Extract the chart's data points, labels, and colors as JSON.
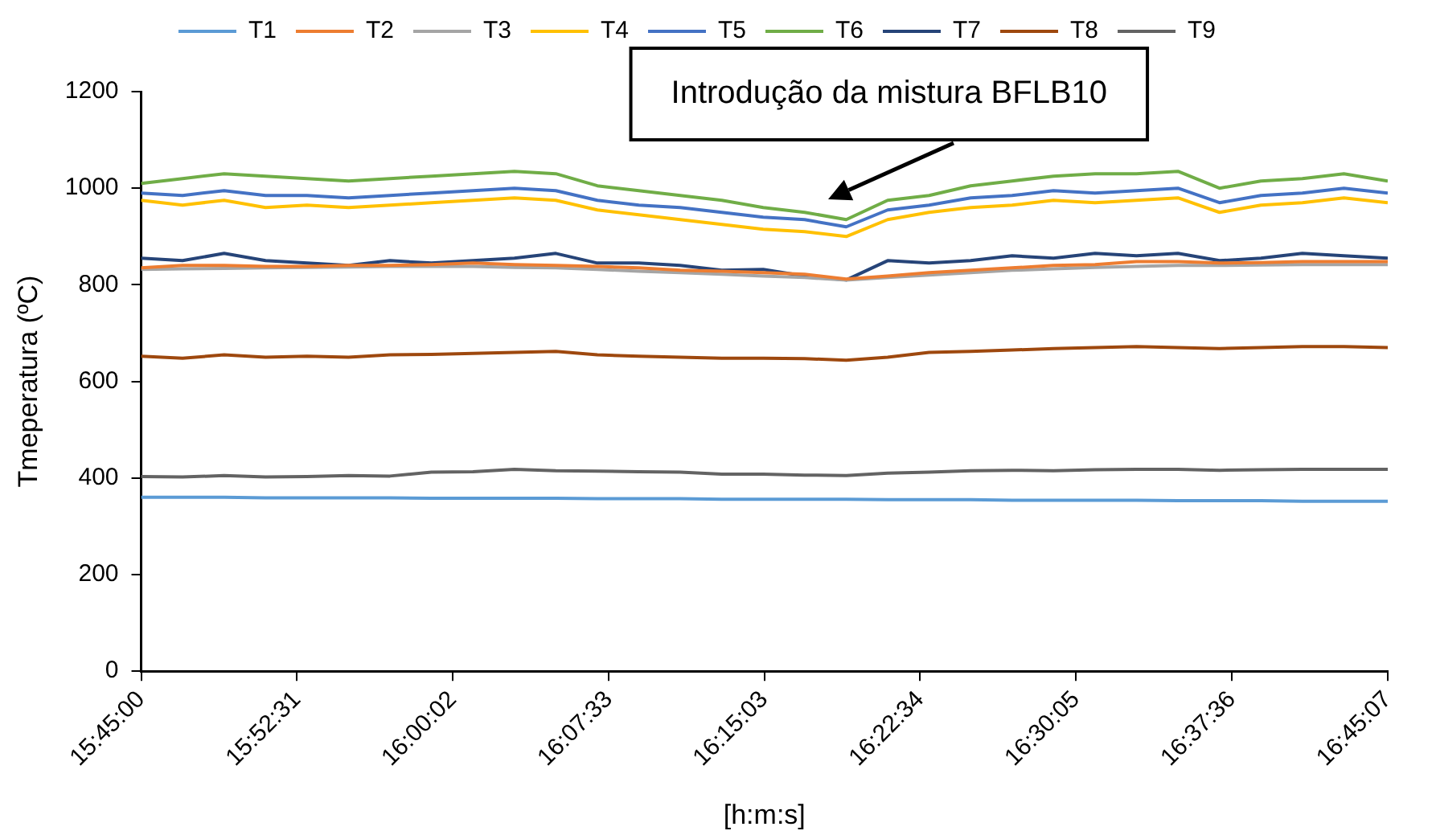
{
  "chart_data": {
    "type": "line",
    "xlabel": "[h:m:s]",
    "ylabel": "Tmeperatura (ºC)",
    "grid": false,
    "legend": "top",
    "marker": "none",
    "line_style": "solid",
    "xlim": [
      15.75,
      16.751944
    ],
    "ylim": [
      0,
      1200
    ],
    "yticks": [
      0,
      200,
      400,
      600,
      800,
      1000,
      1200
    ],
    "xticks": [
      {
        "value": 15.75,
        "label": "15:45:00"
      },
      {
        "value": 15.875278,
        "label": "15:52:31"
      },
      {
        "value": 16.000556,
        "label": "16:00:02"
      },
      {
        "value": 16.125833,
        "label": "16:07:33"
      },
      {
        "value": 16.250833,
        "label": "16:15:03"
      },
      {
        "value": 16.376111,
        "label": "16:22:34"
      },
      {
        "value": 16.501389,
        "label": "16:30:05"
      },
      {
        "value": 16.626667,
        "label": "16:37:36"
      },
      {
        "value": 16.751944,
        "label": "16:45:07"
      }
    ],
    "x": [
      15.75,
      15.7833,
      15.8167,
      15.85,
      15.8833,
      15.9167,
      15.95,
      15.9833,
      16.0167,
      16.05,
      16.0833,
      16.1167,
      16.15,
      16.1833,
      16.2167,
      16.25,
      16.2833,
      16.3167,
      16.35,
      16.3833,
      16.4167,
      16.45,
      16.4833,
      16.5167,
      16.55,
      16.5833,
      16.6167,
      16.65,
      16.6833,
      16.7167,
      16.751944
    ],
    "series": [
      {
        "name": "T1",
        "color": "#5b9bd5",
        "values": [
          360,
          360,
          360,
          359,
          359,
          359,
          359,
          358,
          358,
          358,
          358,
          357,
          357,
          357,
          356,
          356,
          356,
          356,
          355,
          355,
          355,
          354,
          354,
          354,
          354,
          353,
          353,
          353,
          352,
          352,
          352
        ]
      },
      {
        "name": "T2",
        "color": "#ed7d31",
        "values": [
          835,
          840,
          840,
          838,
          838,
          840,
          840,
          842,
          845,
          842,
          840,
          838,
          835,
          830,
          828,
          825,
          822,
          812,
          818,
          825,
          830,
          835,
          840,
          842,
          848,
          848,
          845,
          846,
          848,
          848,
          848
        ]
      },
      {
        "name": "T3",
        "color": "#a5a5a5",
        "values": [
          832,
          833,
          834,
          835,
          836,
          837,
          838,
          838,
          838,
          836,
          835,
          832,
          828,
          825,
          822,
          818,
          815,
          810,
          815,
          820,
          825,
          830,
          833,
          836,
          838,
          840,
          840,
          841,
          842,
          842,
          842
        ]
      },
      {
        "name": "T4",
        "color": "#ffc000",
        "values": [
          975,
          965,
          975,
          960,
          965,
          960,
          965,
          970,
          975,
          980,
          975,
          955,
          945,
          935,
          925,
          915,
          910,
          900,
          935,
          950,
          960,
          965,
          975,
          970,
          975,
          980,
          950,
          965,
          970,
          980,
          970
        ]
      },
      {
        "name": "T5",
        "color": "#4472c4",
        "values": [
          990,
          985,
          995,
          985,
          985,
          980,
          985,
          990,
          995,
          1000,
          995,
          975,
          965,
          960,
          950,
          940,
          935,
          920,
          955,
          965,
          980,
          985,
          995,
          990,
          995,
          1000,
          970,
          985,
          990,
          1000,
          990
        ]
      },
      {
        "name": "T6",
        "color": "#70ad47",
        "values": [
          1010,
          1020,
          1030,
          1025,
          1020,
          1015,
          1020,
          1025,
          1030,
          1035,
          1030,
          1005,
          995,
          985,
          975,
          960,
          950,
          935,
          975,
          985,
          1005,
          1015,
          1025,
          1030,
          1030,
          1035,
          1000,
          1015,
          1020,
          1030,
          1015
        ]
      },
      {
        "name": "T7",
        "color": "#264478",
        "values": [
          855,
          850,
          865,
          850,
          845,
          840,
          850,
          845,
          850,
          855,
          865,
          845,
          845,
          840,
          830,
          832,
          818,
          810,
          850,
          845,
          850,
          860,
          855,
          865,
          860,
          865,
          850,
          855,
          865,
          860,
          855
        ]
      },
      {
        "name": "T8",
        "color": "#9e480e",
        "values": [
          652,
          648,
          655,
          650,
          652,
          650,
          655,
          656,
          658,
          660,
          662,
          655,
          652,
          650,
          648,
          648,
          647,
          644,
          650,
          660,
          662,
          665,
          668,
          670,
          672,
          670,
          668,
          670,
          672,
          672,
          670
        ]
      },
      {
        "name": "T9",
        "color": "#636363",
        "values": [
          403,
          402,
          405,
          402,
          403,
          405,
          404,
          412,
          413,
          418,
          415,
          414,
          413,
          412,
          408,
          408,
          406,
          405,
          410,
          412,
          415,
          416,
          415,
          417,
          418,
          418,
          416,
          417,
          418,
          418,
          418
        ]
      }
    ],
    "annotations": [
      "Introdução da mistura BFLB10"
    ]
  }
}
